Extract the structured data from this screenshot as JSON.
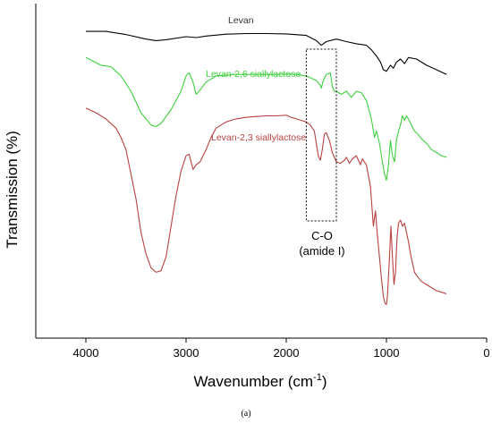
{
  "chart_data": {
    "type": "line",
    "xlabel": "Wavenumber (cm",
    "xlabel_sup": "-1",
    "xlabel_close": ")",
    "ylabel": "Transmission (%)",
    "xlim": [
      4500,
      0
    ],
    "x_ticks": [
      4000,
      3000,
      2000,
      1000,
      0
    ],
    "y_ticks_labeled": false,
    "grid": false,
    "series": [
      {
        "name": "Levan",
        "color": "#000000",
        "label_color": "#333333",
        "points": [
          [
            4000,
            0.985
          ],
          [
            3800,
            0.985
          ],
          [
            3600,
            0.975
          ],
          [
            3400,
            0.96
          ],
          [
            3300,
            0.955
          ],
          [
            3200,
            0.958
          ],
          [
            3000,
            0.968
          ],
          [
            2900,
            0.965
          ],
          [
            2800,
            0.97
          ],
          [
            2600,
            0.976
          ],
          [
            2400,
            0.978
          ],
          [
            2200,
            0.978
          ],
          [
            2000,
            0.977
          ],
          [
            1800,
            0.972
          ],
          [
            1700,
            0.955
          ],
          [
            1650,
            0.94
          ],
          [
            1600,
            0.952
          ],
          [
            1500,
            0.96
          ],
          [
            1400,
            0.952
          ],
          [
            1300,
            0.945
          ],
          [
            1200,
            0.94
          ],
          [
            1150,
            0.925
          ],
          [
            1100,
            0.905
          ],
          [
            1060,
            0.885
          ],
          [
            1030,
            0.86
          ],
          [
            1000,
            0.855
          ],
          [
            960,
            0.875
          ],
          [
            930,
            0.865
          ],
          [
            900,
            0.885
          ],
          [
            860,
            0.895
          ],
          [
            820,
            0.88
          ],
          [
            780,
            0.9
          ],
          [
            700,
            0.895
          ],
          [
            600,
            0.875
          ],
          [
            500,
            0.86
          ],
          [
            400,
            0.845
          ]
        ]
      },
      {
        "name": "Levan-2,6 siallylactose",
        "color": "#3ecf3e",
        "label_color": "#3ecf3e",
        "points": [
          [
            4000,
            0.9
          ],
          [
            3850,
            0.875
          ],
          [
            3750,
            0.87
          ],
          [
            3700,
            0.855
          ],
          [
            3650,
            0.84
          ],
          [
            3550,
            0.79
          ],
          [
            3450,
            0.72
          ],
          [
            3350,
            0.68
          ],
          [
            3300,
            0.675
          ],
          [
            3250,
            0.685
          ],
          [
            3150,
            0.73
          ],
          [
            3050,
            0.79
          ],
          [
            3000,
            0.84
          ],
          [
            2970,
            0.85
          ],
          [
            2930,
            0.82
          ],
          [
            2900,
            0.78
          ],
          [
            2870,
            0.79
          ],
          [
            2800,
            0.82
          ],
          [
            2700,
            0.84
          ],
          [
            2500,
            0.845
          ],
          [
            2300,
            0.845
          ],
          [
            2100,
            0.845
          ],
          [
            2000,
            0.846
          ],
          [
            1900,
            0.845
          ],
          [
            1800,
            0.84
          ],
          [
            1700,
            0.825
          ],
          [
            1660,
            0.81
          ],
          [
            1650,
            0.8
          ],
          [
            1630,
            0.825
          ],
          [
            1600,
            0.845
          ],
          [
            1560,
            0.85
          ],
          [
            1540,
            0.805
          ],
          [
            1520,
            0.79
          ],
          [
            1500,
            0.79
          ],
          [
            1450,
            0.78
          ],
          [
            1400,
            0.79
          ],
          [
            1350,
            0.77
          ],
          [
            1300,
            0.79
          ],
          [
            1250,
            0.785
          ],
          [
            1200,
            0.76
          ],
          [
            1150,
            0.7
          ],
          [
            1120,
            0.64
          ],
          [
            1100,
            0.66
          ],
          [
            1070,
            0.62
          ],
          [
            1040,
            0.56
          ],
          [
            1020,
            0.52
          ],
          [
            1000,
            0.5
          ],
          [
            980,
            0.55
          ],
          [
            960,
            0.63
          ],
          [
            940,
            0.58
          ],
          [
            920,
            0.56
          ],
          [
            900,
            0.63
          ],
          [
            880,
            0.66
          ],
          [
            860,
            0.68
          ],
          [
            840,
            0.71
          ],
          [
            820,
            0.695
          ],
          [
            800,
            0.71
          ],
          [
            780,
            0.7
          ],
          [
            750,
            0.68
          ],
          [
            720,
            0.66
          ],
          [
            700,
            0.655
          ],
          [
            650,
            0.635
          ],
          [
            600,
            0.62
          ],
          [
            550,
            0.6
          ],
          [
            500,
            0.59
          ],
          [
            450,
            0.58
          ],
          [
            400,
            0.575
          ]
        ]
      },
      {
        "name": "Levan-2,3 siallylactose",
        "color": "#b94040",
        "label_color": "#b94040",
        "points": [
          [
            4000,
            0.735
          ],
          [
            3900,
            0.72
          ],
          [
            3800,
            0.7
          ],
          [
            3700,
            0.67
          ],
          [
            3650,
            0.64
          ],
          [
            3600,
            0.6
          ],
          [
            3550,
            0.52
          ],
          [
            3500,
            0.44
          ],
          [
            3450,
            0.33
          ],
          [
            3400,
            0.26
          ],
          [
            3350,
            0.215
          ],
          [
            3300,
            0.2
          ],
          [
            3250,
            0.205
          ],
          [
            3200,
            0.25
          ],
          [
            3150,
            0.35
          ],
          [
            3100,
            0.45
          ],
          [
            3050,
            0.53
          ],
          [
            3000,
            0.58
          ],
          [
            2970,
            0.585
          ],
          [
            2930,
            0.535
          ],
          [
            2900,
            0.55
          ],
          [
            2860,
            0.56
          ],
          [
            2800,
            0.6
          ],
          [
            2750,
            0.64
          ],
          [
            2700,
            0.67
          ],
          [
            2600,
            0.69
          ],
          [
            2500,
            0.7
          ],
          [
            2400,
            0.705
          ],
          [
            2300,
            0.708
          ],
          [
            2200,
            0.71
          ],
          [
            2100,
            0.71
          ],
          [
            2000,
            0.712
          ],
          [
            1950,
            0.705
          ],
          [
            1900,
            0.7
          ],
          [
            1850,
            0.695
          ],
          [
            1800,
            0.69
          ],
          [
            1760,
            0.68
          ],
          [
            1720,
            0.66
          ],
          [
            1700,
            0.62
          ],
          [
            1680,
            0.58
          ],
          [
            1660,
            0.565
          ],
          [
            1640,
            0.6
          ],
          [
            1620,
            0.65
          ],
          [
            1600,
            0.655
          ],
          [
            1570,
            0.63
          ],
          [
            1540,
            0.59
          ],
          [
            1500,
            0.56
          ],
          [
            1460,
            0.555
          ],
          [
            1420,
            0.565
          ],
          [
            1400,
            0.575
          ],
          [
            1370,
            0.555
          ],
          [
            1340,
            0.57
          ],
          [
            1300,
            0.58
          ],
          [
            1260,
            0.55
          ],
          [
            1240,
            0.57
          ],
          [
            1200,
            0.55
          ],
          [
            1160,
            0.48
          ],
          [
            1130,
            0.35
          ],
          [
            1110,
            0.4
          ],
          [
            1090,
            0.32
          ],
          [
            1070,
            0.25
          ],
          [
            1050,
            0.18
          ],
          [
            1030,
            0.12
          ],
          [
            1015,
            0.1
          ],
          [
            1000,
            0.095
          ],
          [
            990,
            0.12
          ],
          [
            970,
            0.25
          ],
          [
            955,
            0.35
          ],
          [
            940,
            0.25
          ],
          [
            925,
            0.16
          ],
          [
            910,
            0.2
          ],
          [
            895,
            0.31
          ],
          [
            880,
            0.36
          ],
          [
            860,
            0.37
          ],
          [
            840,
            0.35
          ],
          [
            820,
            0.36
          ],
          [
            800,
            0.33
          ],
          [
            780,
            0.3
          ],
          [
            760,
            0.26
          ],
          [
            740,
            0.23
          ],
          [
            720,
            0.2
          ],
          [
            700,
            0.19
          ],
          [
            650,
            0.17
          ],
          [
            600,
            0.16
          ],
          [
            550,
            0.15
          ],
          [
            500,
            0.14
          ],
          [
            450,
            0.135
          ],
          [
            400,
            0.13
          ]
        ]
      }
    ],
    "annotation": {
      "line1": "C-O",
      "line2": "(amide I)",
      "box_x_range": [
        1800,
        1500
      ]
    },
    "caption": "(a)"
  }
}
